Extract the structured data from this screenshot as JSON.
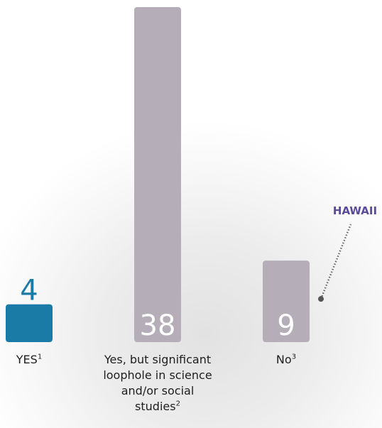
{
  "chart_data": {
    "type": "bar",
    "title": "",
    "xlabel": "",
    "ylabel": "",
    "ylim": [
      0,
      38
    ],
    "categories": [
      {
        "label": "YES",
        "sup": "1"
      },
      {
        "label": "Yes, but significant loophole in science and/or social studies",
        "sup": "2"
      },
      {
        "label": "No",
        "sup": "3"
      }
    ],
    "values": [
      4,
      38,
      9
    ],
    "value_labels": [
      "4",
      "38",
      "9"
    ],
    "bar_colors": [
      "#1a7ca6",
      "#b5aeb8",
      "#b5aeb8"
    ],
    "value_label_colors": [
      "#1a7ca6",
      "#ffffff",
      "#ffffff"
    ],
    "annotation": {
      "text": "HAWAII",
      "color": "#5b4a9b",
      "target_category": 2
    }
  }
}
